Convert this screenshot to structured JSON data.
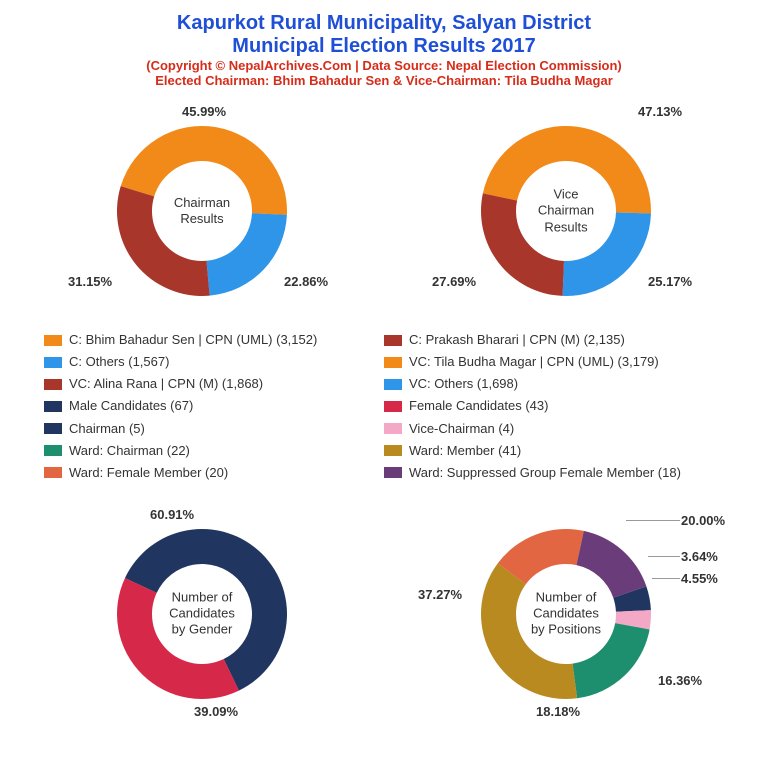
{
  "title": {
    "line1": "Kapurkot Rural Municipality, Salyan District",
    "line2": "Municipal Election Results 2017",
    "color": "#1f4fd6",
    "fontsize": 20
  },
  "copyright": {
    "text": "(Copyright © NepalArchives.Com | Data Source: Nepal Election Commission)",
    "color": "#d62c1a",
    "fontsize": 13
  },
  "elected": {
    "text": "Elected Chairman: Bhim Bahadur Sen & Vice-Chairman: Tila Budha Magar",
    "color": "#d62c1a",
    "fontsize": 13
  },
  "donut_style": {
    "outer_radius": 85,
    "inner_radius": 50,
    "background": "#ffffff"
  },
  "chart1": {
    "center_label": "Chairman\nResults",
    "slices": [
      {
        "label": "45.99%",
        "value": 45.99,
        "color": "#f28a1a"
      },
      {
        "label": "22.86%",
        "value": 22.86,
        "color": "#2f95e8"
      },
      {
        "label": "31.15%",
        "value": 31.15,
        "color": "#a8362b"
      }
    ],
    "start_angle": -73
  },
  "chart2": {
    "center_label": "Vice\nChairman\nResults",
    "slices": [
      {
        "label": "47.13%",
        "value": 47.13,
        "color": "#f28a1a"
      },
      {
        "label": "25.17%",
        "value": 25.17,
        "color": "#2f95e8"
      },
      {
        "label": "27.69%",
        "value": 27.69,
        "color": "#a8362b"
      }
    ],
    "start_angle": -78
  },
  "chart3": {
    "center_label": "Number of\nCandidates\nby Gender",
    "slices": [
      {
        "label": "60.91%",
        "value": 60.91,
        "color": "#20355f"
      },
      {
        "label": "39.09%",
        "value": 39.09,
        "color": "#d6294a"
      }
    ],
    "start_angle": -65
  },
  "chart4": {
    "center_label": "Number of\nCandidates\nby Positions",
    "slices": [
      {
        "label": "4.55%",
        "value": 4.55,
        "color": "#20355f"
      },
      {
        "label": "3.64%",
        "value": 3.64,
        "color": "#f3a8c5"
      },
      {
        "label": "20.00%",
        "value": 20.0,
        "color": "#1e8f6e"
      },
      {
        "label": "37.27%",
        "value": 37.27,
        "color": "#b88a20"
      },
      {
        "label": "18.18%",
        "value": 18.18,
        "color": "#e26642"
      },
      {
        "label": "16.36%",
        "value": 16.36,
        "color": "#6a3d7a"
      }
    ],
    "start_angle": 71
  },
  "legend_left": [
    {
      "color": "#f28a1a",
      "text": "C: Bhim Bahadur Sen | CPN (UML) (3,152)"
    },
    {
      "color": "#2f95e8",
      "text": "C: Others (1,567)"
    },
    {
      "color": "#a8362b",
      "text": "VC: Alina Rana | CPN (M) (1,868)"
    },
    {
      "color": "#20355f",
      "text": "Male Candidates (67)"
    },
    {
      "color": "#20355f",
      "text": "Chairman (5)"
    },
    {
      "color": "#1e8f6e",
      "text": "Ward: Chairman (22)"
    },
    {
      "color": "#e26642",
      "text": "Ward: Female Member (20)"
    }
  ],
  "legend_right": [
    {
      "color": "#a8362b",
      "text": "C: Prakash Bharari | CPN (M) (2,135)"
    },
    {
      "color": "#f28a1a",
      "text": "VC: Tila Budha Magar | CPN (UML) (3,179)"
    },
    {
      "color": "#2f95e8",
      "text": "VC: Others (1,698)"
    },
    {
      "color": "#d6294a",
      "text": "Female Candidates (43)"
    },
    {
      "color": "#f3a8c5",
      "text": "Vice-Chairman (4)"
    },
    {
      "color": "#b88a20",
      "text": "Ward: Member (41)"
    },
    {
      "color": "#6a3d7a",
      "text": "Ward: Suppressed Group Female Member (18)"
    }
  ]
}
